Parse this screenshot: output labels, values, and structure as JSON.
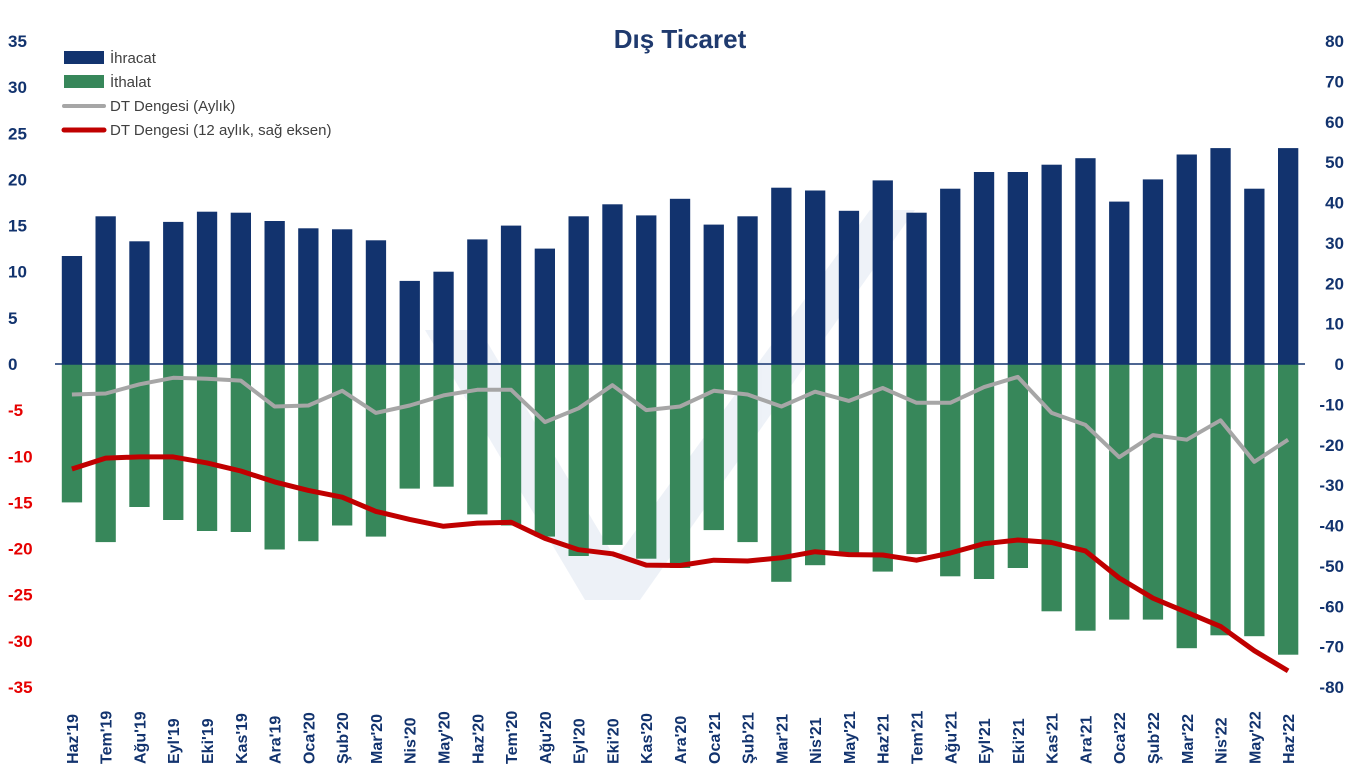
{
  "chart_data": {
    "type": "bar",
    "title": "Dış Ticaret",
    "categories": [
      "Haz'19",
      "Tem'19",
      "Ağu'19",
      "Eyl'19",
      "Eki'19",
      "Kas'19",
      "Ara'19",
      "Oca'20",
      "Şub'20",
      "Mar'20",
      "Nis'20",
      "May'20",
      "Haz'20",
      "Tem'20",
      "Ağu'20",
      "Eyl'20",
      "Eki'20",
      "Kas'20",
      "Ara'20",
      "Oca'21",
      "Şub'21",
      "Mar'21",
      "Nis'21",
      "May'21",
      "Haz'21",
      "Tem'21",
      "Ağu'21",
      "Eyl'21",
      "Eki'21",
      "Kas'21",
      "Ara'21",
      "Oca'22",
      "Şub'22",
      "Mar'22",
      "Nis'22",
      "May'22",
      "Haz'22"
    ],
    "series": [
      {
        "name": "İhracat",
        "axis": "left",
        "kind": "bar",
        "color": "#12336e",
        "values": [
          11.7,
          16.0,
          13.3,
          15.4,
          16.5,
          16.4,
          15.5,
          14.7,
          14.6,
          13.4,
          9.0,
          10.0,
          13.5,
          15.0,
          12.5,
          16.0,
          17.3,
          16.1,
          17.9,
          15.1,
          16.0,
          19.1,
          18.8,
          16.6,
          19.9,
          16.4,
          19.0,
          20.8,
          20.8,
          21.6,
          22.3,
          17.6,
          20.0,
          22.7,
          23.4,
          19.0,
          23.4
        ]
      },
      {
        "name": "İthalat",
        "axis": "left",
        "kind": "bar",
        "color": "#37875a",
        "values": [
          -15.0,
          -19.3,
          -15.5,
          -16.9,
          -18.1,
          -18.2,
          -20.1,
          -19.2,
          -17.5,
          -18.7,
          -13.5,
          -13.3,
          -16.3,
          -17.5,
          -18.7,
          -20.8,
          -19.6,
          -21.1,
          -22.1,
          -18.0,
          -19.3,
          -23.6,
          -21.8,
          -20.6,
          -22.5,
          -20.6,
          -23.0,
          -23.3,
          -22.1,
          -26.8,
          -28.9,
          -27.7,
          -27.7,
          -30.8,
          -29.4,
          -29.5,
          -31.5
        ]
      },
      {
        "name": "DT Dengesi (Aylık)",
        "axis": "left",
        "kind": "line",
        "color": "#a6a6a6",
        "values": [
          -3.3,
          -3.2,
          -2.2,
          -1.5,
          -1.6,
          -1.8,
          -4.6,
          -4.5,
          -2.9,
          -5.3,
          -4.5,
          -3.4,
          -2.8,
          -2.8,
          -6.3,
          -4.8,
          -2.3,
          -5.0,
          -4.6,
          -2.9,
          -3.3,
          -4.6,
          -3.0,
          -4.0,
          -2.6,
          -4.2,
          -4.2,
          -2.5,
          -1.4,
          -5.3,
          -6.6,
          -10.1,
          -7.7,
          -8.2,
          -6.1,
          -10.6,
          -8.2
        ]
      },
      {
        "name": "DT Dengesi (12 aylık, sağ eksen)",
        "axis": "right",
        "kind": "line",
        "color": "#c00000",
        "values": [
          -26.0,
          -23.3,
          -23.0,
          -23.0,
          -24.5,
          -26.5,
          -29.2,
          -31.3,
          -33.0,
          -36.5,
          -38.5,
          -40.2,
          -39.4,
          -39.2,
          -43.2,
          -46.0,
          -47.0,
          -49.8,
          -49.9,
          -48.6,
          -48.8,
          -48.0,
          -46.5,
          -47.2,
          -47.3,
          -48.6,
          -46.8,
          -44.5,
          -43.6,
          -44.2,
          -46.3,
          -53.0,
          -58.0,
          -61.5,
          -65.0,
          -71.0,
          -76.0
        ]
      }
    ],
    "left_axis": {
      "ylim": [
        -35,
        35
      ],
      "ticks": [
        "35",
        "30",
        "25",
        "20",
        "15",
        "10",
        "5",
        "0",
        "-5",
        "-10",
        "-15",
        "-20",
        "-25",
        "-30",
        "-35"
      ]
    },
    "right_axis": {
      "ylim": [
        -80,
        80
      ],
      "ticks": [
        "80",
        "70",
        "60",
        "50",
        "40",
        "30",
        "20",
        "10",
        "0",
        "-10",
        "-20",
        "-30",
        "-40",
        "-50",
        "-60",
        "-70",
        "-80"
      ]
    },
    "legend_position": "top-left",
    "grid": false,
    "colors": {
      "left_positive": "#12336e",
      "left_negative": "#e60000",
      "right_positive": "#12336e",
      "right_negative": "#e60000"
    }
  }
}
